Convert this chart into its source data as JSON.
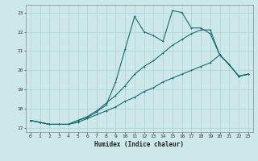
{
  "title": "",
  "xlabel": "Humidex (Indice chaleur)",
  "ylabel": "",
  "bg_color": "#cce8ea",
  "grid_color": "#aad0d4",
  "line_color": "#1a6b6b",
  "xlim": [
    -0.5,
    23.5
  ],
  "ylim": [
    16.8,
    23.4
  ],
  "yticks": [
    17,
    18,
    19,
    20,
    21,
    22,
    23
  ],
  "xticks": [
    0,
    1,
    2,
    3,
    4,
    5,
    6,
    7,
    8,
    9,
    10,
    11,
    12,
    13,
    14,
    15,
    16,
    17,
    18,
    19,
    20,
    21,
    22,
    23
  ],
  "line1_x": [
    0,
    1,
    2,
    3,
    4,
    5,
    6,
    7,
    8,
    9,
    10,
    11,
    12,
    13,
    14,
    15,
    16,
    17,
    18,
    19,
    20,
    21,
    22,
    23
  ],
  "line1_y": [
    17.4,
    17.3,
    17.2,
    17.2,
    17.2,
    17.4,
    17.55,
    17.85,
    18.2,
    19.4,
    21.1,
    22.8,
    22.0,
    21.8,
    21.5,
    23.1,
    23.0,
    22.2,
    22.2,
    21.9,
    20.8,
    20.3,
    19.7,
    19.8
  ],
  "line2_x": [
    0,
    1,
    2,
    3,
    4,
    5,
    6,
    7,
    8,
    9,
    10,
    11,
    12,
    13,
    14,
    15,
    16,
    17,
    18,
    19,
    20,
    21,
    22,
    23
  ],
  "line2_y": [
    17.4,
    17.3,
    17.2,
    17.2,
    17.2,
    17.4,
    17.6,
    17.9,
    18.3,
    18.7,
    19.2,
    19.8,
    20.2,
    20.5,
    20.9,
    21.3,
    21.6,
    21.9,
    22.1,
    22.1,
    20.8,
    20.3,
    19.7,
    19.8
  ],
  "line3_x": [
    0,
    1,
    2,
    3,
    4,
    5,
    6,
    7,
    8,
    9,
    10,
    11,
    12,
    13,
    14,
    15,
    16,
    17,
    18,
    19,
    20,
    21,
    22,
    23
  ],
  "line3_y": [
    17.4,
    17.3,
    17.2,
    17.2,
    17.2,
    17.3,
    17.5,
    17.7,
    17.9,
    18.1,
    18.4,
    18.6,
    18.9,
    19.1,
    19.4,
    19.6,
    19.8,
    20.0,
    20.2,
    20.4,
    20.8,
    20.3,
    19.7,
    19.8
  ]
}
